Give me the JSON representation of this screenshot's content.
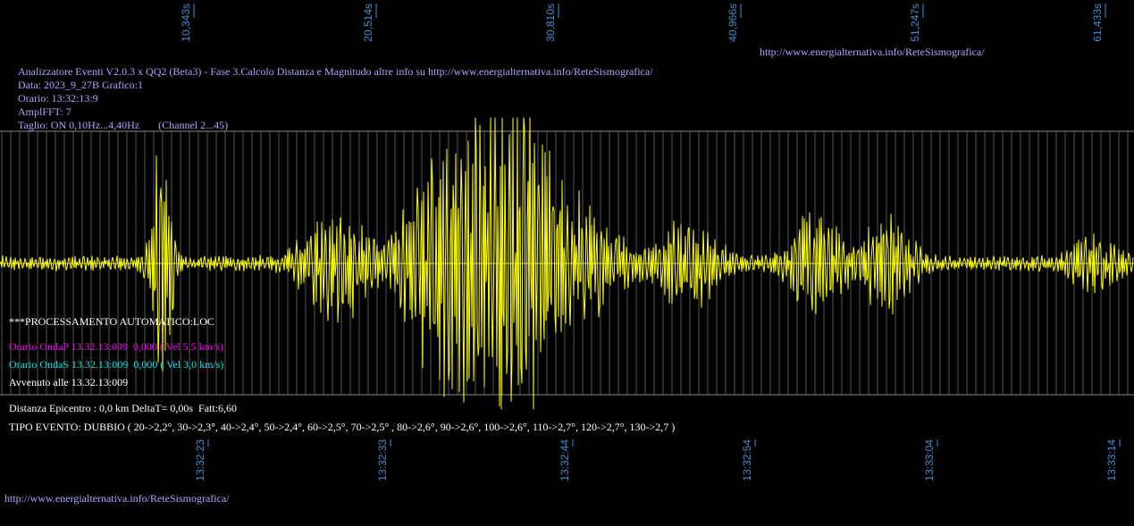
{
  "header": {
    "url_top": "http://www.energialternativa.info/ReteSismografica/",
    "lines": [
      "Analizzatore Eventi V2.0.3 x QQ2 (Beta3) - Fase 3.Calcolo Distanza e Magnitudo altre info su http://www.energialternativa.info/ReteSismografica/",
      "Data: 2023_9_27B Grafico:1",
      "Orario: 13:32:13:9",
      "AmplFFT: 7",
      "Taglio: ON 0,10Hz...4,40Hz       (Channel 2...45)"
    ]
  },
  "top_ticks": [
    "10,343s",
    "20,514s",
    "30,810s",
    "40,966s",
    "51,247s",
    "61,433s"
  ],
  "bottom_ticks": [
    "13:32:23",
    "13:32:33",
    "13:32:44",
    "13:32:54",
    "13:33:04",
    "13:33:14"
  ],
  "processing": {
    "title": "***PROCESSAMENTO AUTOMATICO:LOC",
    "p_wave": "Orario OndaP 13.32.13:009  0,000 ( Vel 5,5 km/s)",
    "s_wave": "Orario OndaS 13.32.13:009  0,000 ( Vel 3,0 km/s)",
    "occurred": "Avvenuto alle 13.32.13:009",
    "distance": "Distanza Epicentro : 0,0 km DeltaT= 0,00s  Fatt:6,60",
    "event_type": "TIPO EVENTO: DUBBIO ( 20->2,2°, 30->2,3°, 40->2,4°, 50->2,4°, 60->2,5°, 70->2,5° , 80->2,6°, 90->2,6°, 100->2,6°, 110->2,7°, 120->2,7°, 130->2,7 )"
  },
  "footer": {
    "url": "http://www.energialternativa.info/ReteSismografica/"
  },
  "colors": {
    "background": "#000000",
    "trace": "#ffff00",
    "grid": "#555555",
    "tick_label": "#3f8fd0",
    "header_text": "#a8a8ff",
    "p_wave": "#ff00ff",
    "s_wave": "#00e8e8",
    "text": "#ffffff"
  },
  "chart_data": {
    "type": "line",
    "x_range_s": [
      0,
      63
    ],
    "y_range": [
      -1,
      1
    ],
    "bursts": [
      {
        "t": 9.0,
        "amp": 1.0,
        "dur": 0.6
      },
      {
        "t": 18.7,
        "amp": 0.45,
        "dur": 2.0
      },
      {
        "t": 24.3,
        "amp": 0.55,
        "dur": 2.2
      },
      {
        "t": 27.2,
        "amp": 1.15,
        "dur": 3.2
      },
      {
        "t": 29.5,
        "amp": 0.55,
        "dur": 2.0
      },
      {
        "t": 32.8,
        "amp": 0.35,
        "dur": 2.0
      },
      {
        "t": 38.2,
        "amp": 0.35,
        "dur": 1.8
      },
      {
        "t": 45.3,
        "amp": 0.4,
        "dur": 1.5
      },
      {
        "t": 49.3,
        "amp": 0.4,
        "dur": 1.5
      },
      {
        "t": 60.7,
        "amp": 0.2,
        "dur": 1.5
      }
    ],
    "background_noise": 0.06
  }
}
